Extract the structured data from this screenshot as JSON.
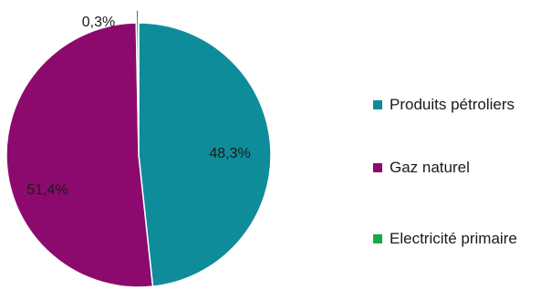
{
  "chart_data": {
    "type": "pie",
    "categories": [
      "Produits pétroliers",
      "Gaz naturel",
      "Electricité primaire"
    ],
    "values": [
      48.3,
      51.4,
      0.3
    ],
    "data_labels": [
      "48,3%",
      "51,4%",
      "0,3%"
    ],
    "colors": [
      "#0f8c9a",
      "#8c0a6e",
      "#1aa84a"
    ],
    "legend_position": "right",
    "start": "top",
    "direction": "clockwise"
  }
}
